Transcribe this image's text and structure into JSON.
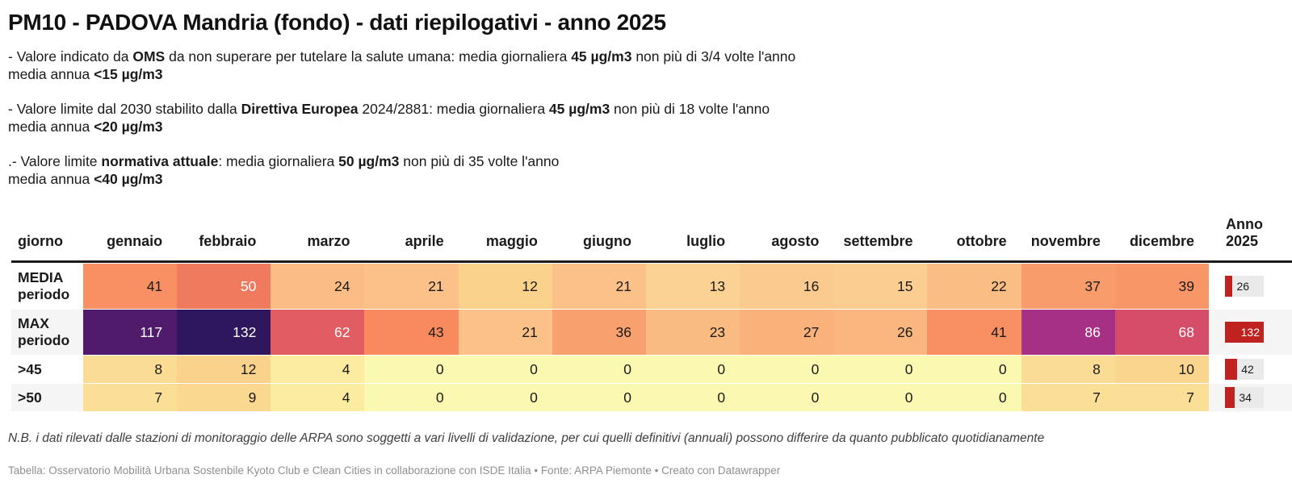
{
  "title": "PM10 - PADOVA Mandria (fondo) - dati riepilogativi - anno 2025",
  "notes": [
    {
      "lines": [
        [
          {
            "t": "- Valore indicato da ",
            "b": false
          },
          {
            "t": "OMS",
            "b": true
          },
          {
            "t": " da non superare per tutelare la salute umana: media giornaliera ",
            "b": false
          },
          {
            "t": "45 µg/m3",
            "b": true
          },
          {
            "t": " non più di 3/4 volte l'anno",
            "b": false
          }
        ],
        [
          {
            "t": "media annua ",
            "b": false
          },
          {
            "t": "<15 µg/m3",
            "b": true
          }
        ]
      ]
    },
    {
      "lines": [
        [
          {
            "t": "- Valore limite dal 2030 stabilito dalla ",
            "b": false
          },
          {
            "t": "Direttiva Europea",
            "b": true
          },
          {
            "t": " 2024/2881: media giornaliera ",
            "b": false
          },
          {
            "t": "45 µg/m3",
            "b": true
          },
          {
            "t": " non più di 18 volte l'anno",
            "b": false
          }
        ],
        [
          {
            "t": "media annua ",
            "b": false
          },
          {
            "t": "<20 µg/m3",
            "b": true
          }
        ]
      ]
    },
    {
      "lines": [
        [
          {
            "t": ".- Valore limite ",
            "b": false
          },
          {
            "t": "normativa attuale",
            "b": true
          },
          {
            "t": ": media giornaliera ",
            "b": false
          },
          {
            "t": "50 µg/m3",
            "b": true
          },
          {
            "t": " non più di 35 volte l'anno",
            "b": false
          }
        ],
        [
          {
            "t": "media annua ",
            "b": false
          },
          {
            "t": "<40 µg/m3",
            "b": true
          }
        ]
      ]
    }
  ],
  "chart_data": {
    "type": "table",
    "title": "PM10 - PADOVA Mandria (fondo) - dati riepilogativi - anno 2025",
    "columns": [
      "giorno",
      "gennaio",
      "febbraio",
      "marzo",
      "aprile",
      "maggio",
      "giugno",
      "luglio",
      "agosto",
      "settembre",
      "ottobre",
      "novembre",
      "dicembre",
      "Anno\n2025"
    ],
    "rows": [
      {
        "label": "MEDIA periodo",
        "values": [
          41,
          50,
          24,
          21,
          12,
          21,
          13,
          16,
          15,
          22,
          37,
          39
        ],
        "anno": 26
      },
      {
        "label": "MAX periodo",
        "values": [
          117,
          132,
          62,
          43,
          21,
          36,
          23,
          27,
          26,
          41,
          86,
          68
        ],
        "anno": 132
      },
      {
        "label": ">45",
        "values": [
          8,
          12,
          4,
          0,
          0,
          0,
          0,
          0,
          0,
          0,
          8,
          10
        ],
        "anno": 42
      },
      {
        "label": ">50",
        "values": [
          7,
          9,
          4,
          0,
          0,
          0,
          0,
          0,
          0,
          0,
          7,
          7
        ],
        "anno": 34
      }
    ],
    "color_scale": {
      "0": "#faf8b1",
      "4": "#fcec9f",
      "7": "#fbdf97",
      "8": "#fbdc94",
      "9": "#fad88f",
      "10": "#fad58d",
      "12": "#fad28b",
      "13": "#fbd294",
      "15": "#fbcd91",
      "16": "#fbca8e",
      "21": "#fbc189",
      "22": "#fabd84",
      "23": "#fabb82",
      "24": "#fbbc85",
      "26": "#fab67e",
      "27": "#fab17a",
      "36": "#f9a06f",
      "37": "#f99c6b",
      "39": "#f99668",
      "41": "#f89063",
      "43": "#f88a5d",
      "50": "#ef7a5e",
      "62": "#e25c64",
      "68": "#d54d68",
      "86": "#a53084",
      "117": "#511b6b",
      "132": "#2e175c"
    },
    "white_text_min": 50,
    "anno": {
      "max": 132,
      "bar_color": "#c0221f",
      "track_color": "#eaeaea"
    },
    "layout": {
      "heatmap": true,
      "stripe_color": "#f5f5f5"
    }
  },
  "footer": {
    "nb": "N.B. i dati rilevati dalle stazioni di monitoraggio delle ARPA sono soggetti a vari livelli di validazione, per cui quelli definitivi (annuali) possono differire da quanto pubblicato quotidianamente",
    "attribution": "Tabella: Osservatorio Mobilità Urbana Sostenbile Kyoto Club e Clean Cities in collaborazione con ISDE Italia • Fonte: ARPA Piemonte • Creato con Datawrapper"
  }
}
